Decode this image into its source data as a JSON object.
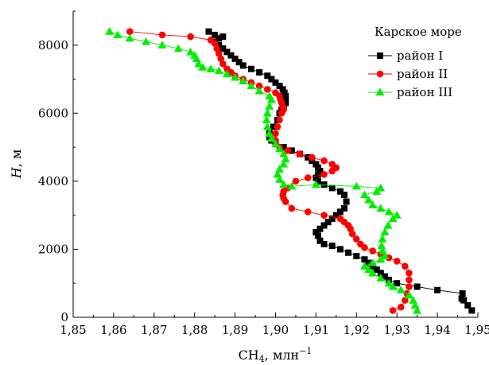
{
  "chart_data": {
    "type": "scatter",
    "xlabel_main": "CH",
    "xlabel_sub": "4",
    "xlabel_unit": ", млн",
    "xlabel_sup": "−1",
    "ylabel_var": "H",
    "ylabel_unit": ", м",
    "xlim": [
      1.85,
      1.95
    ],
    "ylim": [
      0,
      9000
    ],
    "x_ticks": [
      1.85,
      1.86,
      1.87,
      1.88,
      1.89,
      1.9,
      1.91,
      1.92,
      1.93,
      1.94,
      1.95
    ],
    "x_tick_labels": [
      "1,85",
      "1,86",
      "1,87",
      "1,88",
      "1,89",
      "1,90",
      "1,91",
      "1,92",
      "1,93",
      "1,94",
      "1,95"
    ],
    "y_ticks": [
      0,
      2000,
      4000,
      6000,
      8000
    ],
    "y_tick_labels": [
      "0",
      "2000",
      "4000",
      "6000",
      "8000"
    ],
    "legend_title": "Карское море",
    "legend_position": "top-right",
    "grid": false,
    "series": [
      {
        "name": "район I",
        "marker": "square",
        "color": "#000000",
        "points": [
          [
            1.9485,
            200
          ],
          [
            1.9475,
            350
          ],
          [
            1.9465,
            500
          ],
          [
            1.946,
            550
          ],
          [
            1.9462,
            700
          ],
          [
            1.94,
            800
          ],
          [
            1.935,
            900
          ],
          [
            1.93,
            1000
          ],
          [
            1.928,
            1100
          ],
          [
            1.927,
            1200
          ],
          [
            1.926,
            1300
          ],
          [
            1.925,
            1400
          ],
          [
            1.924,
            1500
          ],
          [
            1.923,
            1600
          ],
          [
            1.922,
            1700
          ],
          [
            1.92,
            1800
          ],
          [
            1.918,
            1900
          ],
          [
            1.916,
            2000
          ],
          [
            1.914,
            2100
          ],
          [
            1.912,
            2150
          ],
          [
            1.911,
            2250
          ],
          [
            1.9105,
            2400
          ],
          [
            1.91,
            2500
          ],
          [
            1.911,
            2600
          ],
          [
            1.912,
            2700
          ],
          [
            1.913,
            2800
          ],
          [
            1.914,
            2900
          ],
          [
            1.915,
            3000
          ],
          [
            1.916,
            3100
          ],
          [
            1.917,
            3200
          ],
          [
            1.9175,
            3400
          ],
          [
            1.917,
            3600
          ],
          [
            1.916,
            3700
          ],
          [
            1.914,
            3800
          ],
          [
            1.912,
            3900
          ],
          [
            1.9105,
            4000
          ],
          [
            1.91,
            4100
          ],
          [
            1.9105,
            4200
          ],
          [
            1.911,
            4300
          ],
          [
            1.9105,
            4400
          ],
          [
            1.91,
            4500
          ],
          [
            1.909,
            4600
          ],
          [
            1.908,
            4700
          ],
          [
            1.906,
            4800
          ],
          [
            1.904,
            4900
          ],
          [
            1.902,
            5000
          ],
          [
            1.9,
            5100
          ],
          [
            1.899,
            5200
          ],
          [
            1.8985,
            5300
          ],
          [
            1.8985,
            5400
          ],
          [
            1.8995,
            5600
          ],
          [
            1.9005,
            5800
          ],
          [
            1.901,
            6000
          ],
          [
            1.9015,
            6100
          ],
          [
            1.902,
            6200
          ],
          [
            1.9025,
            6300
          ],
          [
            1.9025,
            6400
          ],
          [
            1.9025,
            6500
          ],
          [
            1.9022,
            6600
          ],
          [
            1.9018,
            6700
          ],
          [
            1.901,
            6800
          ],
          [
            1.9,
            6900
          ],
          [
            1.899,
            7000
          ],
          [
            1.898,
            7100
          ],
          [
            1.896,
            7200
          ],
          [
            1.894,
            7300
          ],
          [
            1.892,
            7400
          ],
          [
            1.891,
            7500
          ],
          [
            1.89,
            7600
          ],
          [
            1.889,
            7700
          ],
          [
            1.888,
            7800
          ],
          [
            1.887,
            7900
          ],
          [
            1.886,
            8000
          ],
          [
            1.885,
            8100
          ],
          [
            1.886,
            8200
          ],
          [
            1.887,
            8250
          ],
          [
            1.885,
            8300
          ],
          [
            1.8835,
            8400
          ]
        ]
      },
      {
        "name": "район II",
        "marker": "circle",
        "color": "#ff0000",
        "points": [
          [
            1.929,
            200
          ],
          [
            1.931,
            300
          ],
          [
            1.932,
            500
          ],
          [
            1.9325,
            700
          ],
          [
            1.933,
            900
          ],
          [
            1.933,
            1100
          ],
          [
            1.933,
            1300
          ],
          [
            1.932,
            1500
          ],
          [
            1.93,
            1650
          ],
          [
            1.928,
            1750
          ],
          [
            1.926,
            1850
          ],
          [
            1.924,
            1950
          ],
          [
            1.922,
            2050
          ],
          [
            1.921,
            2150
          ],
          [
            1.92,
            2300
          ],
          [
            1.919,
            2450
          ],
          [
            1.9185,
            2600
          ],
          [
            1.918,
            2700
          ],
          [
            1.917,
            2800
          ],
          [
            1.916,
            2900
          ],
          [
            1.912,
            3000
          ],
          [
            1.908,
            3100
          ],
          [
            1.904,
            3200
          ],
          [
            1.9025,
            3400
          ],
          [
            1.902,
            3500
          ],
          [
            1.9018,
            3600
          ],
          [
            1.902,
            3700
          ],
          [
            1.903,
            3800
          ],
          [
            1.905,
            4000
          ],
          [
            1.908,
            4100
          ],
          [
            1.912,
            4200
          ],
          [
            1.914,
            4300
          ],
          [
            1.915,
            4400
          ],
          [
            1.914,
            4500
          ],
          [
            1.912,
            4600
          ],
          [
            1.909,
            4700
          ],
          [
            1.906,
            4800
          ],
          [
            1.903,
            4900
          ],
          [
            1.901,
            5000
          ],
          [
            1.9,
            5200
          ],
          [
            1.9,
            5400
          ],
          [
            1.9005,
            5600
          ],
          [
            1.901,
            5800
          ],
          [
            1.9015,
            6000
          ],
          [
            1.902,
            6100
          ],
          [
            1.9018,
            6200
          ],
          [
            1.9015,
            6300
          ],
          [
            1.9012,
            6400
          ],
          [
            1.901,
            6500
          ],
          [
            1.9,
            6600
          ],
          [
            1.898,
            6700
          ],
          [
            1.896,
            6800
          ],
          [
            1.894,
            6900
          ],
          [
            1.892,
            7000
          ],
          [
            1.89,
            7100
          ],
          [
            1.889,
            7200
          ],
          [
            1.888,
            7300
          ],
          [
            1.887,
            7450
          ],
          [
            1.8865,
            7600
          ],
          [
            1.886,
            7750
          ],
          [
            1.8855,
            7900
          ],
          [
            1.885,
            8050
          ],
          [
            1.884,
            8150
          ],
          [
            1.879,
            8250
          ],
          [
            1.872,
            8300
          ],
          [
            1.864,
            8400
          ]
        ]
      },
      {
        "name": "район III",
        "marker": "triangle",
        "color": "#00ee00",
        "points": [
          [
            1.935,
            200
          ],
          [
            1.9345,
            350
          ],
          [
            1.934,
            500
          ],
          [
            1.933,
            650
          ],
          [
            1.931,
            800
          ],
          [
            1.929,
            900
          ],
          [
            1.928,
            1000
          ],
          [
            1.926,
            1150
          ],
          [
            1.924,
            1300
          ],
          [
            1.923,
            1400
          ],
          [
            1.922,
            1500
          ],
          [
            1.924,
            1600
          ],
          [
            1.926,
            1700
          ],
          [
            1.927,
            1800
          ],
          [
            1.9265,
            1950
          ],
          [
            1.9262,
            2100
          ],
          [
            1.9264,
            2300
          ],
          [
            1.927,
            2500
          ],
          [
            1.9278,
            2700
          ],
          [
            1.929,
            2900
          ],
          [
            1.93,
            3000
          ],
          [
            1.928,
            3100
          ],
          [
            1.926,
            3200
          ],
          [
            1.924,
            3300
          ],
          [
            1.923,
            3450
          ],
          [
            1.922,
            3600
          ],
          [
            1.925,
            3700
          ],
          [
            1.926,
            3800
          ],
          [
            1.92,
            3850
          ],
          [
            1.91,
            3900
          ],
          [
            1.904,
            3850
          ],
          [
            1.902,
            3900
          ],
          [
            1.901,
            4050
          ],
          [
            1.9005,
            4200
          ],
          [
            1.901,
            4350
          ],
          [
            1.902,
            4500
          ],
          [
            1.9025,
            4650
          ],
          [
            1.902,
            4800
          ],
          [
            1.901,
            4950
          ],
          [
            1.9,
            5100
          ],
          [
            1.899,
            5250
          ],
          [
            1.8985,
            5400
          ],
          [
            1.898,
            5600
          ],
          [
            1.8978,
            5800
          ],
          [
            1.898,
            6000
          ],
          [
            1.8985,
            6200
          ],
          [
            1.899,
            6400
          ],
          [
            1.8985,
            6500
          ],
          [
            1.896,
            6650
          ],
          [
            1.894,
            6800
          ],
          [
            1.892,
            6950
          ],
          [
            1.89,
            7050
          ],
          [
            1.888,
            7150
          ],
          [
            1.886,
            7250
          ],
          [
            1.884,
            7300
          ],
          [
            1.882,
            7350
          ],
          [
            1.881,
            7450
          ],
          [
            1.8805,
            7600
          ],
          [
            1.88,
            7700
          ],
          [
            1.879,
            7800
          ],
          [
            1.876,
            7900
          ],
          [
            1.872,
            8000
          ],
          [
            1.868,
            8100
          ],
          [
            1.864,
            8200
          ],
          [
            1.861,
            8300
          ],
          [
            1.859,
            8400
          ]
        ]
      }
    ]
  }
}
